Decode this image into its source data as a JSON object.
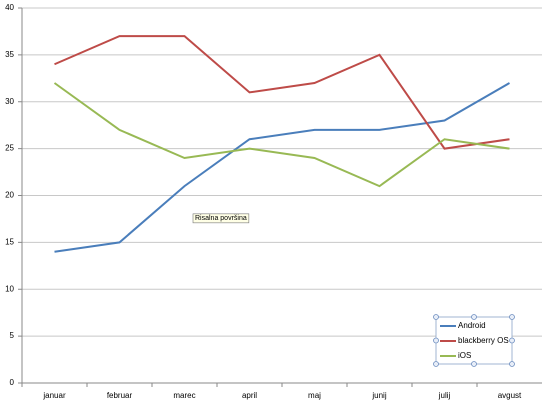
{
  "chart_data": {
    "type": "line",
    "annotation": "Risalna površina",
    "categories": [
      "januar",
      "februar",
      "marec",
      "april",
      "maj",
      "junij",
      "julij",
      "avgust"
    ],
    "series": [
      {
        "name": "Android",
        "color": "#4a7ebb",
        "values": [
          14,
          15,
          21,
          26,
          27,
          27,
          28,
          32
        ]
      },
      {
        "name": "blackberry OS",
        "color": "#be4b48",
        "values": [
          34,
          37,
          37,
          31,
          32,
          35,
          25,
          26
        ]
      },
      {
        "name": "iOS",
        "color": "#98b954",
        "values": [
          32,
          27,
          24,
          25,
          24,
          21,
          26,
          25
        ]
      }
    ],
    "ylim": [
      0,
      40
    ],
    "yticks": [
      0,
      5,
      10,
      15,
      20,
      25,
      30,
      35,
      40
    ],
    "grid": true,
    "legend": "bottom-right"
  }
}
